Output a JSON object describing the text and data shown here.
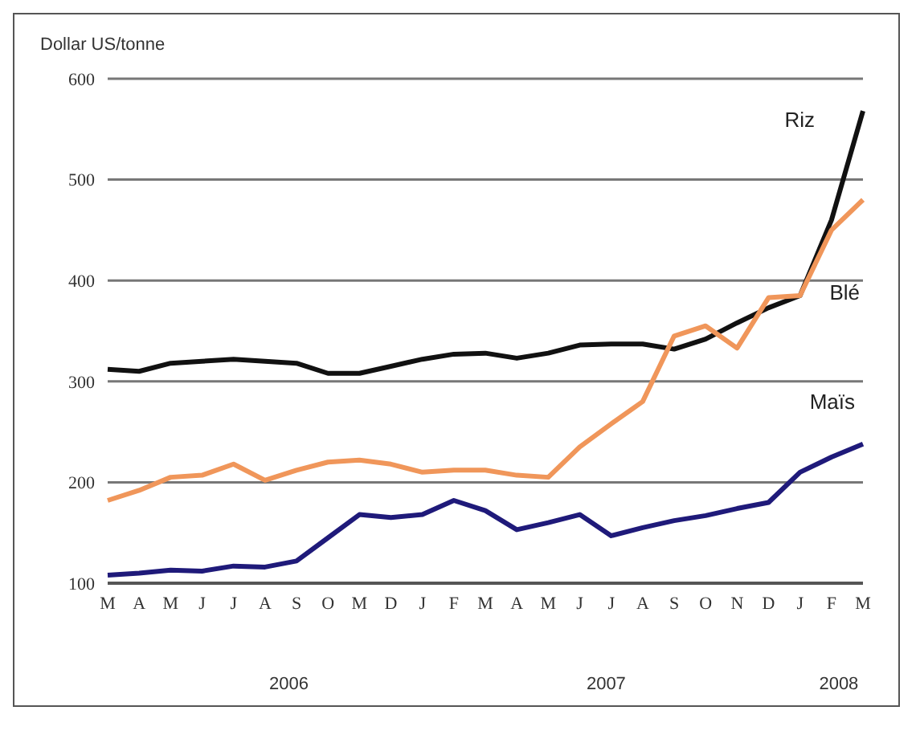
{
  "chart_data": {
    "type": "line",
    "ylabel": "Dollar US/tonne",
    "categories": [
      "M",
      "A",
      "M",
      "J",
      "J",
      "A",
      "S",
      "O",
      "M",
      "D",
      "J",
      "F",
      "M",
      "A",
      "M",
      "J",
      "J",
      "A",
      "S",
      "O",
      "N",
      "D",
      "J",
      "F",
      "M"
    ],
    "series": [
      {
        "name": "Riz",
        "color": "#111111",
        "values": [
          312,
          310,
          318,
          320,
          322,
          320,
          318,
          308,
          308,
          315,
          322,
          327,
          328,
          323,
          328,
          336,
          337,
          337,
          332,
          342,
          358,
          373,
          385,
          460,
          568
        ]
      },
      {
        "name": "Blé",
        "color": "#f0965a",
        "values": [
          182,
          192,
          205,
          207,
          218,
          202,
          212,
          220,
          222,
          218,
          210,
          212,
          212,
          207,
          205,
          235,
          258,
          280,
          345,
          355,
          333,
          383,
          385,
          450,
          480
        ]
      },
      {
        "name": "Maïs",
        "color": "#1f1a7a",
        "values": [
          108,
          110,
          113,
          112,
          117,
          116,
          122,
          145,
          168,
          165,
          168,
          182,
          172,
          153,
          160,
          168,
          147,
          155,
          162,
          167,
          174,
          180,
          210,
          225,
          238
        ]
      }
    ],
    "annotations": [
      "2006",
      "2007",
      "2008"
    ],
    "ylim": [
      100,
      600
    ],
    "yticks": [
      100,
      200,
      300,
      400,
      500,
      600
    ],
    "grid": "y",
    "legend": false,
    "marker": "none",
    "line_style": "solid"
  }
}
